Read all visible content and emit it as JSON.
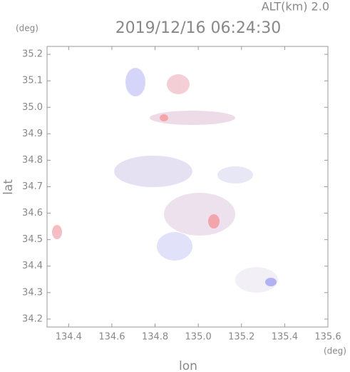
{
  "chart_data": {
    "type": "map",
    "header": "ALT(km) 2.0",
    "title": "2019/12/16 06:24:30",
    "ylabel": "lat",
    "yunit": "(deg)",
    "xlabel": "lon",
    "xunit": "(deg)",
    "xlim": [
      134.3,
      135.6
    ],
    "xticks": [
      134.4,
      134.6,
      134.8,
      {
        "value": 135,
        "label": "135.0"
      },
      135.2,
      135.4,
      135.6
    ],
    "ylim": [
      34.17,
      35.23
    ],
    "yticks": [
      34.2,
      34.3,
      34.4,
      34.5,
      34.6,
      34.7,
      34.8,
      34.9,
      {
        "value": 35,
        "label": "35.0"
      },
      35.1,
      35.2
    ],
    "grid": false
  }
}
